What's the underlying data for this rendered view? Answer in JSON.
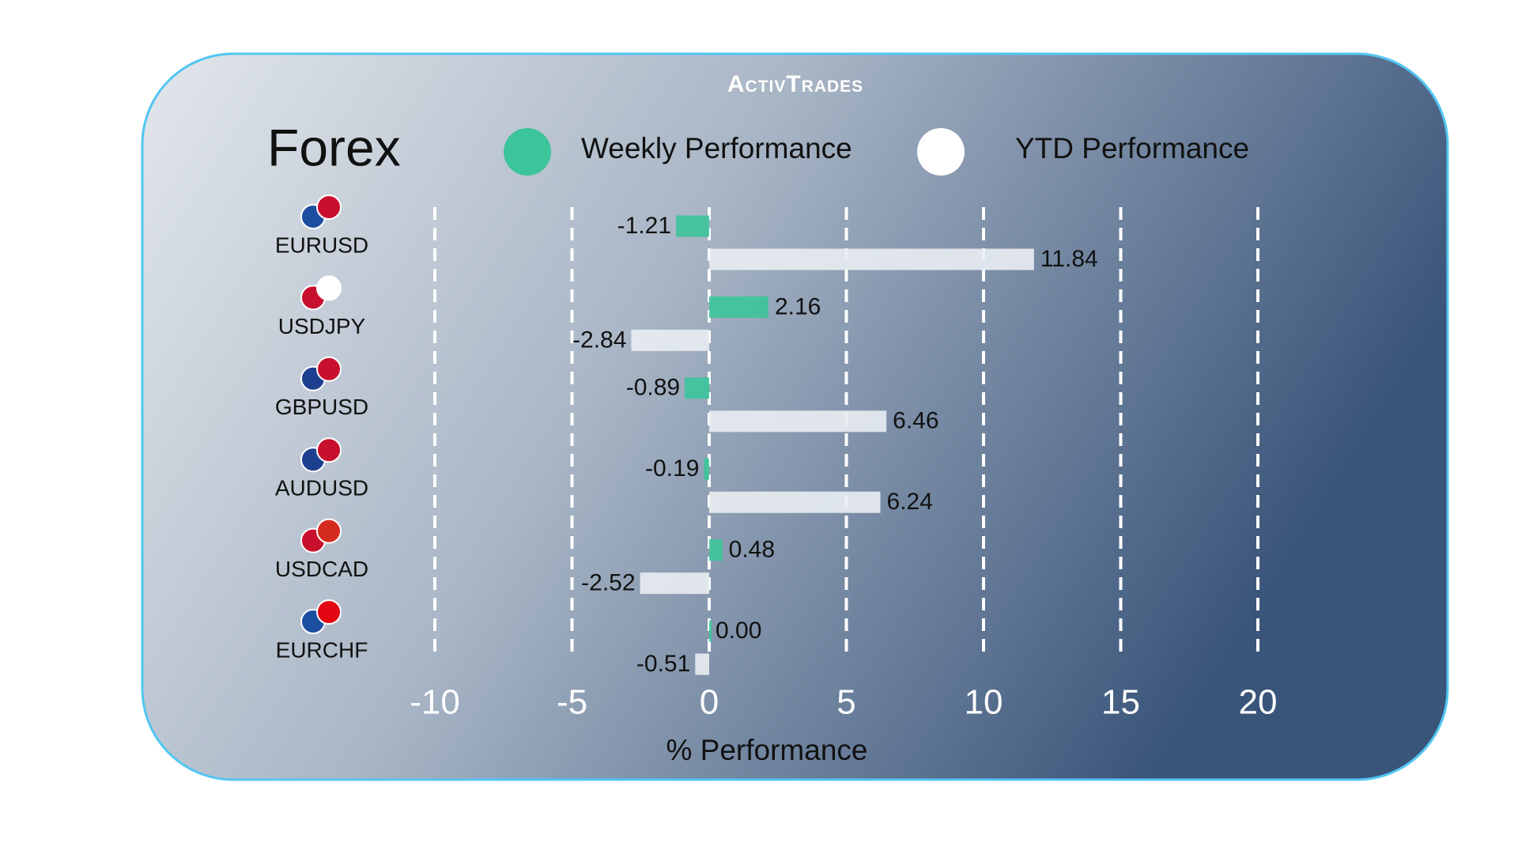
{
  "chart_data": {
    "type": "bar",
    "orientation": "horizontal",
    "title": "Forex",
    "brand": "ActivTrades",
    "xlabel": "% Performance",
    "categories": [
      "EURUSD",
      "USDJPY",
      "GBPUSD",
      "AUDUSD",
      "USDCAD",
      "EURCHF"
    ],
    "series": [
      {
        "name": "Weekly Performance",
        "color": "#3cc49a",
        "values": [
          -1.21,
          2.16,
          -0.89,
          -0.19,
          0.48,
          0.0
        ],
        "value_labels": [
          "-1.21",
          "2.16",
          "-0.89",
          "-0.19",
          "0.48",
          "0.00"
        ]
      },
      {
        "name": "YTD Performance",
        "color": "#e9edf2",
        "values": [
          11.84,
          -2.84,
          6.46,
          6.24,
          -2.52,
          -0.51
        ]
      }
    ],
    "xlim": [
      -10,
      20
    ],
    "xticks": [
      -10,
      -5,
      0,
      5,
      10,
      15,
      20
    ],
    "grid": true
  }
}
